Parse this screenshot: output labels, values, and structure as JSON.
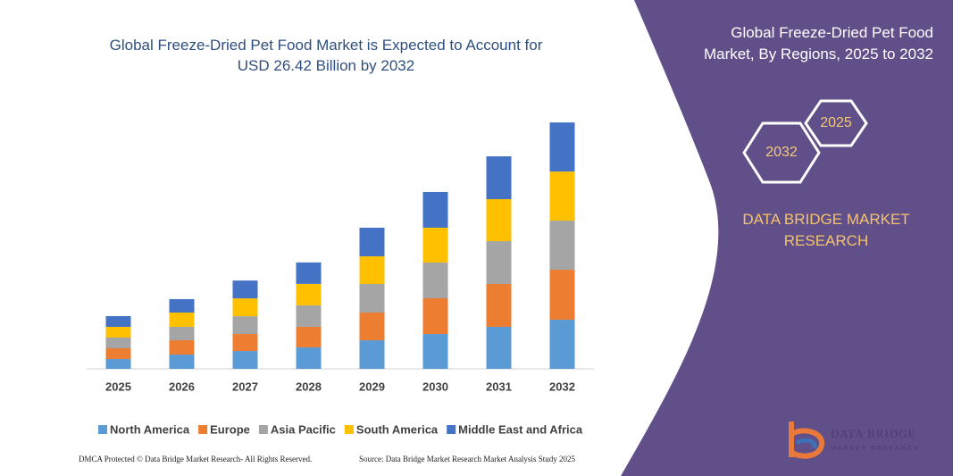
{
  "chart_data": {
    "type": "bar",
    "stacked": true,
    "title": "Global Freeze-Dried Pet Food Market is Expected to Account for USD 26.42 Billion by 2032",
    "categories": [
      "2025",
      "2026",
      "2027",
      "2028",
      "2029",
      "2030",
      "2031",
      "2032"
    ],
    "series": [
      {
        "name": "North America",
        "color": "#5b9bd5",
        "values": [
          1.05,
          1.53,
          1.91,
          2.3,
          3.06,
          3.73,
          4.5,
          5.26
        ]
      },
      {
        "name": "Europe",
        "color": "#ed7d31",
        "values": [
          1.15,
          1.53,
          1.82,
          2.2,
          2.97,
          3.83,
          4.59,
          5.36
        ]
      },
      {
        "name": "Asia Pacific",
        "color": "#a5a5a5",
        "values": [
          1.15,
          1.44,
          1.91,
          2.3,
          3.06,
          3.83,
          4.59,
          5.26
        ]
      },
      {
        "name": "South America",
        "color": "#ffc000",
        "values": [
          1.15,
          1.53,
          1.91,
          2.3,
          2.97,
          3.73,
          4.5,
          5.26
        ]
      },
      {
        "name": "Middle East and Africa",
        "color": "#4472c4",
        "values": [
          1.15,
          1.44,
          1.91,
          2.3,
          3.06,
          3.83,
          4.59,
          5.26
        ]
      }
    ],
    "ylim": [
      0,
      30
    ]
  },
  "panel": {
    "title": "Global Freeze-Dried Pet Food Market, By Regions, 2025 to 2032",
    "hexagons": [
      "2025",
      "2032"
    ],
    "brand": "DATA BRIDGE MARKET RESEARCH",
    "logo": {
      "name": "DATA BRIDGE",
      "tagline": "MARKET RESEARCH"
    }
  },
  "footer": {
    "left": "DMCA Protected © Data Bridge Market Research- All Rights Reserved.",
    "right": "Source: Data Bridge Market Research Market Analysis Study 2025"
  }
}
